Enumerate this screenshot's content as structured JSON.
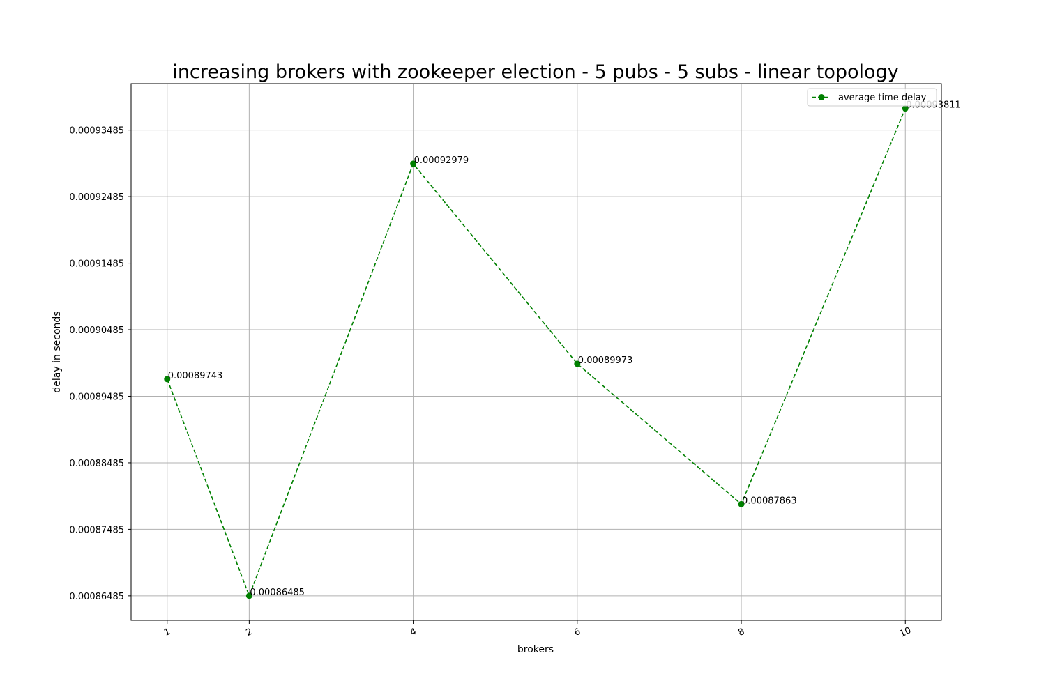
{
  "chart_data": {
    "type": "line",
    "title": "increasing brokers with zookeeper election - 5 pubs - 5 subs - linear topology",
    "xlabel": "brokers",
    "ylabel": "delay in seconds",
    "x": [
      1,
      2,
      4,
      6,
      8,
      10
    ],
    "series": [
      {
        "name": "average time delay",
        "values": [
          0.00089743,
          0.00086485,
          0.00092979,
          0.00089973,
          0.00087863,
          0.00093811
        ],
        "labels": [
          "0.00089743",
          "0.00086485",
          "0.00092979",
          "0.00089973",
          "0.00087863",
          "0.00093811"
        ],
        "color": "#008000",
        "line_style": "dashed",
        "marker": "circle"
      }
    ],
    "x_ticks": [
      1,
      2,
      4,
      6,
      8,
      10
    ],
    "x_tick_labels": [
      "1",
      "2",
      "4",
      "6",
      "8",
      "10"
    ],
    "y_ticks": [
      0.00086485,
      0.00087485,
      0.00088485,
      0.00089485,
      0.00090485,
      0.00091485,
      0.00092485,
      0.00093485
    ],
    "y_tick_labels": [
      "0.00086485",
      "0.00087485",
      "0.00088485",
      "0.00089485",
      "0.00090485",
      "0.00091485",
      "0.00092485",
      "0.00093485"
    ],
    "xlim": [
      0.56,
      10.44
    ],
    "ylim": [
      0.00086117,
      0.00094183
    ],
    "grid": true,
    "legend": "top-right"
  }
}
